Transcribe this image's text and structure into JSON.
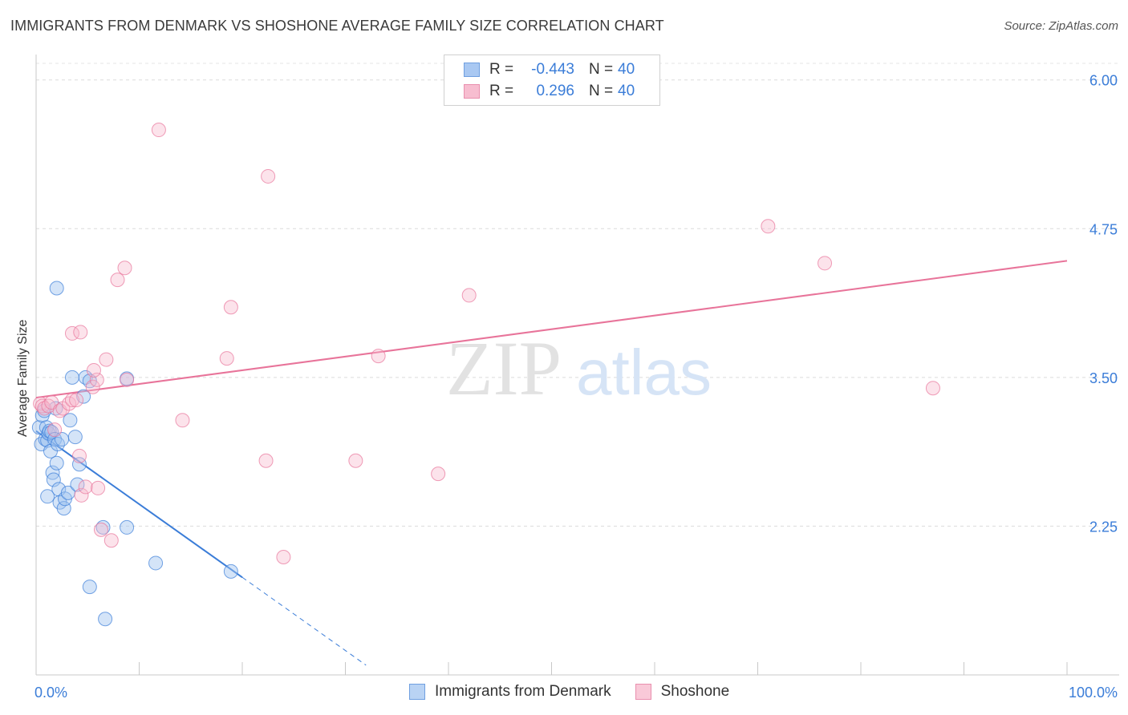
{
  "header": {
    "title": "IMMIGRANTS FROM DENMARK VS SHOSHONE AVERAGE FAMILY SIZE CORRELATION CHART",
    "source": "Source: ZipAtlas.com"
  },
  "watermark": {
    "zip": "ZIP",
    "atlas": "atlas"
  },
  "legend": {
    "rows": [
      {
        "r_label": "R =",
        "r_value": "-0.443",
        "n_label": "N =",
        "n_value": "40",
        "color": "#a9c8f2",
        "border": "#6f9fe0"
      },
      {
        "r_label": "R =",
        "r_value": "0.296",
        "n_label": "N =",
        "n_value": "40",
        "color": "#f7bdd0",
        "border": "#e98fae"
      }
    ]
  },
  "bottom_legend": {
    "items": [
      {
        "label": "Immigrants from Denmark",
        "color": "#b9d3f4",
        "border": "#6f9fe0"
      },
      {
        "label": "Shoshone",
        "color": "#f9c9d8",
        "border": "#e98fae"
      }
    ]
  },
  "chart_data": {
    "type": "scatter",
    "title": "IMMIGRANTS FROM DENMARK VS SHOSHONE AVERAGE FAMILY SIZE CORRELATION CHART",
    "xlabel": "",
    "ylabel": "Average Family Size",
    "xlim": [
      0,
      100
    ],
    "ylim": [
      1.0,
      6.2
    ],
    "x_tick_labels": [
      "0.0%",
      "100.0%"
    ],
    "y_ticks": [
      2.25,
      3.5,
      4.75,
      6.0
    ],
    "y_tick_labels": [
      "2.25",
      "3.50",
      "4.75",
      "6.00"
    ],
    "grid": true,
    "series": [
      {
        "name": "Immigrants from Denmark",
        "color": "#3b7dd8",
        "fill": "rgba(160,195,240,0.45)",
        "trend": {
          "x0": 0,
          "y0": 3.05,
          "x1": 20,
          "y1": 1.82,
          "dash_to_x": 32
        },
        "points": [
          [
            0.3,
            3.08
          ],
          [
            0.5,
            2.94
          ],
          [
            0.6,
            3.18
          ],
          [
            0.8,
            3.22
          ],
          [
            0.9,
            2.98
          ],
          [
            1.0,
            3.08
          ],
          [
            1.1,
            2.97
          ],
          [
            1.2,
            3.03
          ],
          [
            1.3,
            3.05
          ],
          [
            1.4,
            2.88
          ],
          [
            1.5,
            3.04
          ],
          [
            1.6,
            2.7
          ],
          [
            1.7,
            2.64
          ],
          [
            1.8,
            2.98
          ],
          [
            1.9,
            3.24
          ],
          [
            2.0,
            2.78
          ],
          [
            2.1,
            2.94
          ],
          [
            2.2,
            2.56
          ],
          [
            2.3,
            2.45
          ],
          [
            2.5,
            2.98
          ],
          [
            2.7,
            2.4
          ],
          [
            2.8,
            2.48
          ],
          [
            3.1,
            2.53
          ],
          [
            3.3,
            3.14
          ],
          [
            3.5,
            3.5
          ],
          [
            3.8,
            3.0
          ],
          [
            4.0,
            2.6
          ],
          [
            4.2,
            2.77
          ],
          [
            4.6,
            3.34
          ],
          [
            4.8,
            3.5
          ],
          [
            5.2,
            3.47
          ],
          [
            1.1,
            2.5
          ],
          [
            2.0,
            4.25
          ],
          [
            6.5,
            2.24
          ],
          [
            6.7,
            1.47
          ],
          [
            8.8,
            3.49
          ],
          [
            8.8,
            2.24
          ],
          [
            11.6,
            1.94
          ],
          [
            18.9,
            1.87
          ],
          [
            5.2,
            1.74
          ]
        ]
      },
      {
        "name": "Shoshone",
        "color": "#e8749a",
        "fill": "rgba(247,185,206,0.40)",
        "trend": {
          "x0": 0,
          "y0": 3.33,
          "x1": 100,
          "y1": 4.48
        },
        "points": [
          [
            0.4,
            3.28
          ],
          [
            0.6,
            3.26
          ],
          [
            0.8,
            3.24
          ],
          [
            1.2,
            3.26
          ],
          [
            1.5,
            3.29
          ],
          [
            1.8,
            3.06
          ],
          [
            2.3,
            3.22
          ],
          [
            2.6,
            3.24
          ],
          [
            3.2,
            3.28
          ],
          [
            3.5,
            3.31
          ],
          [
            3.9,
            3.31
          ],
          [
            4.2,
            2.84
          ],
          [
            4.4,
            2.51
          ],
          [
            4.8,
            2.58
          ],
          [
            5.5,
            3.42
          ],
          [
            5.9,
            3.48
          ],
          [
            6.3,
            2.22
          ],
          [
            6.8,
            3.65
          ],
          [
            3.5,
            3.87
          ],
          [
            6.0,
            2.57
          ],
          [
            7.3,
            2.13
          ],
          [
            4.3,
            3.88
          ],
          [
            5.6,
            3.56
          ],
          [
            7.9,
            4.32
          ],
          [
            8.6,
            4.42
          ],
          [
            11.9,
            5.58
          ],
          [
            14.2,
            3.14
          ],
          [
            18.5,
            3.66
          ],
          [
            18.9,
            4.09
          ],
          [
            22.5,
            5.19
          ],
          [
            22.3,
            2.8
          ],
          [
            24.0,
            1.99
          ],
          [
            31.0,
            2.8
          ],
          [
            33.2,
            3.68
          ],
          [
            39.0,
            2.69
          ],
          [
            42.0,
            4.19
          ],
          [
            71.0,
            4.77
          ],
          [
            76.5,
            4.46
          ],
          [
            87.0,
            3.41
          ],
          [
            8.8,
            3.48
          ]
        ]
      }
    ]
  }
}
